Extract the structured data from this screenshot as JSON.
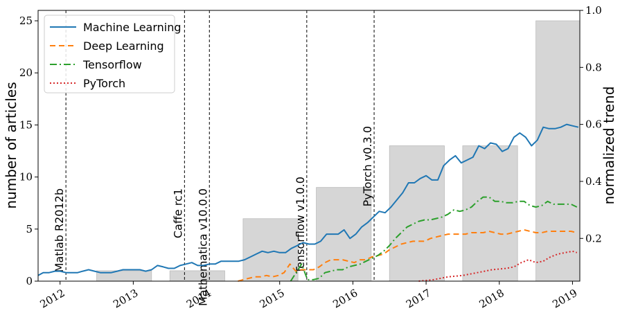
{
  "chart_data": {
    "type": "line",
    "title": "",
    "xlabel": "",
    "ylabel": "number of articles",
    "y2label": "normalized trend",
    "xlim": [
      2011.7,
      2019.1
    ],
    "ylim": [
      0,
      26
    ],
    "y2lim": [
      0.05,
      1.0
    ],
    "x_ticks": [
      {
        "value": 2012,
        "label": "2012"
      },
      {
        "value": 2013,
        "label": "2013"
      },
      {
        "value": 2014,
        "label": "2014"
      },
      {
        "value": 2015,
        "label": "2015"
      },
      {
        "value": 2016,
        "label": "2016"
      },
      {
        "value": 2017,
        "label": "2017"
      },
      {
        "value": 2018,
        "label": "2018"
      },
      {
        "value": 2019,
        "label": "2019"
      }
    ],
    "y_ticks": [
      {
        "value": 0,
        "label": "0"
      },
      {
        "value": 5,
        "label": "5"
      },
      {
        "value": 10,
        "label": "10"
      },
      {
        "value": 15,
        "label": "15"
      },
      {
        "value": 20,
        "label": "20"
      },
      {
        "value": 25,
        "label": "25"
      }
    ],
    "y2_ticks": [
      {
        "value": 0.2,
        "label": "0.2"
      },
      {
        "value": 0.4,
        "label": "0.4"
      },
      {
        "value": 0.6,
        "label": "0.6"
      },
      {
        "value": 0.8,
        "label": "0.8"
      },
      {
        "value": 1.0,
        "label": "1.0"
      }
    ],
    "bars": [
      {
        "year": 2012,
        "x0": 2012.5,
        "x1": 2013.25,
        "value": 1
      },
      {
        "year": 2013,
        "x0": 2013.5,
        "x1": 2014.25,
        "value": 1
      },
      {
        "year": 2014,
        "x0": 2014.5,
        "x1": 2015.25,
        "value": 6
      },
      {
        "year": 2015,
        "x0": 2015.5,
        "x1": 2016.25,
        "value": 9
      },
      {
        "year": 2016,
        "x0": 2016.5,
        "x1": 2017.25,
        "value": 13
      },
      {
        "year": 2017,
        "x0": 2017.5,
        "x1": 2018.25,
        "value": 13
      },
      {
        "year": 2018,
        "x0": 2018.5,
        "x1": 2019.25,
        "value": 25
      }
    ],
    "releases": [
      {
        "x": 2012.08,
        "label": "Matlab R2012b"
      },
      {
        "x": 2013.7,
        "label": "Caffe rc1"
      },
      {
        "x": 2014.04,
        "label": "Mathematica v10.0.0"
      },
      {
        "x": 2015.37,
        "label": "Tensorflow v1.0.0"
      },
      {
        "x": 2016.29,
        "label": "PyTorch v0.3.0"
      }
    ],
    "series": [
      {
        "name": "Machine Learning",
        "color": "#1f77b4",
        "dash": "",
        "points": [
          [
            2011.7,
            0.07
          ],
          [
            2011.77,
            0.08
          ],
          [
            2011.85,
            0.08
          ],
          [
            2011.93,
            0.085
          ],
          [
            2012.0,
            0.085
          ],
          [
            2012.08,
            0.08
          ],
          [
            2012.16,
            0.08
          ],
          [
            2012.24,
            0.08
          ],
          [
            2012.31,
            0.085
          ],
          [
            2012.39,
            0.09
          ],
          [
            2012.47,
            0.085
          ],
          [
            2012.55,
            0.08
          ],
          [
            2012.63,
            0.08
          ],
          [
            2012.7,
            0.08
          ],
          [
            2012.78,
            0.085
          ],
          [
            2012.86,
            0.09
          ],
          [
            2012.93,
            0.09
          ],
          [
            2013.01,
            0.09
          ],
          [
            2013.09,
            0.09
          ],
          [
            2013.17,
            0.085
          ],
          [
            2013.25,
            0.09
          ],
          [
            2013.33,
            0.105
          ],
          [
            2013.41,
            0.1
          ],
          [
            2013.48,
            0.095
          ],
          [
            2013.56,
            0.095
          ],
          [
            2013.64,
            0.105
          ],
          [
            2013.72,
            0.11
          ],
          [
            2013.8,
            0.115
          ],
          [
            2013.88,
            0.105
          ],
          [
            2013.96,
            0.105
          ],
          [
            2014.04,
            0.11
          ],
          [
            2014.12,
            0.11
          ],
          [
            2014.2,
            0.12
          ],
          [
            2014.28,
            0.12
          ],
          [
            2014.36,
            0.12
          ],
          [
            2014.44,
            0.12
          ],
          [
            2014.52,
            0.125
          ],
          [
            2014.6,
            0.135
          ],
          [
            2014.68,
            0.145
          ],
          [
            2014.76,
            0.155
          ],
          [
            2014.84,
            0.15
          ],
          [
            2014.92,
            0.155
          ],
          [
            2015.0,
            0.15
          ],
          [
            2015.08,
            0.15
          ],
          [
            2015.16,
            0.165
          ],
          [
            2015.24,
            0.175
          ],
          [
            2015.32,
            0.185
          ],
          [
            2015.4,
            0.18
          ],
          [
            2015.48,
            0.18
          ],
          [
            2015.56,
            0.19
          ],
          [
            2015.64,
            0.215
          ],
          [
            2015.72,
            0.215
          ],
          [
            2015.8,
            0.215
          ],
          [
            2015.88,
            0.23
          ],
          [
            2015.96,
            0.2
          ],
          [
            2016.04,
            0.215
          ],
          [
            2016.12,
            0.24
          ],
          [
            2016.2,
            0.255
          ],
          [
            2016.28,
            0.275
          ],
          [
            2016.36,
            0.295
          ],
          [
            2016.44,
            0.29
          ],
          [
            2016.52,
            0.31
          ],
          [
            2016.6,
            0.335
          ],
          [
            2016.68,
            0.36
          ],
          [
            2016.76,
            0.395
          ],
          [
            2016.84,
            0.395
          ],
          [
            2016.92,
            0.41
          ],
          [
            2017.0,
            0.42
          ],
          [
            2017.08,
            0.405
          ],
          [
            2017.16,
            0.405
          ],
          [
            2017.24,
            0.455
          ],
          [
            2017.32,
            0.475
          ],
          [
            2017.4,
            0.49
          ],
          [
            2017.48,
            0.465
          ],
          [
            2017.56,
            0.475
          ],
          [
            2017.64,
            0.485
          ],
          [
            2017.72,
            0.525
          ],
          [
            2017.8,
            0.515
          ],
          [
            2017.88,
            0.535
          ],
          [
            2017.96,
            0.53
          ],
          [
            2018.04,
            0.505
          ],
          [
            2018.12,
            0.515
          ],
          [
            2018.2,
            0.555
          ],
          [
            2018.28,
            0.57
          ],
          [
            2018.36,
            0.555
          ],
          [
            2018.44,
            0.525
          ],
          [
            2018.52,
            0.545
          ],
          [
            2018.6,
            0.59
          ],
          [
            2018.68,
            0.585
          ],
          [
            2018.76,
            0.585
          ],
          [
            2018.84,
            0.59
          ],
          [
            2018.92,
            0.6
          ],
          [
            2019.0,
            0.595
          ],
          [
            2019.08,
            0.59
          ]
        ]
      },
      {
        "name": "Deep Learning",
        "color": "#ff7f0e",
        "dash": "8,5",
        "points": [
          [
            2014.43,
            0.05
          ],
          [
            2014.5,
            0.055
          ],
          [
            2014.58,
            0.06
          ],
          [
            2014.66,
            0.065
          ],
          [
            2014.74,
            0.065
          ],
          [
            2014.82,
            0.07
          ],
          [
            2014.9,
            0.065
          ],
          [
            2014.98,
            0.07
          ],
          [
            2015.06,
            0.08
          ],
          [
            2015.14,
            0.11
          ],
          [
            2015.22,
            0.085
          ],
          [
            2015.3,
            0.09
          ],
          [
            2015.38,
            0.09
          ],
          [
            2015.46,
            0.09
          ],
          [
            2015.54,
            0.1
          ],
          [
            2015.62,
            0.115
          ],
          [
            2015.7,
            0.125
          ],
          [
            2015.78,
            0.125
          ],
          [
            2015.86,
            0.125
          ],
          [
            2015.94,
            0.12
          ],
          [
            2016.02,
            0.115
          ],
          [
            2016.1,
            0.125
          ],
          [
            2016.18,
            0.125
          ],
          [
            2016.26,
            0.135
          ],
          [
            2016.34,
            0.14
          ],
          [
            2016.42,
            0.145
          ],
          [
            2016.5,
            0.16
          ],
          [
            2016.58,
            0.17
          ],
          [
            2016.66,
            0.18
          ],
          [
            2016.74,
            0.185
          ],
          [
            2016.82,
            0.19
          ],
          [
            2016.9,
            0.19
          ],
          [
            2016.98,
            0.19
          ],
          [
            2017.06,
            0.2
          ],
          [
            2017.14,
            0.205
          ],
          [
            2017.22,
            0.21
          ],
          [
            2017.3,
            0.215
          ],
          [
            2017.38,
            0.215
          ],
          [
            2017.46,
            0.215
          ],
          [
            2017.54,
            0.215
          ],
          [
            2017.62,
            0.22
          ],
          [
            2017.7,
            0.22
          ],
          [
            2017.78,
            0.22
          ],
          [
            2017.86,
            0.225
          ],
          [
            2017.94,
            0.22
          ],
          [
            2018.02,
            0.215
          ],
          [
            2018.1,
            0.215
          ],
          [
            2018.18,
            0.22
          ],
          [
            2018.26,
            0.225
          ],
          [
            2018.34,
            0.23
          ],
          [
            2018.42,
            0.225
          ],
          [
            2018.5,
            0.22
          ],
          [
            2018.58,
            0.22
          ],
          [
            2018.66,
            0.225
          ],
          [
            2018.74,
            0.225
          ],
          [
            2018.82,
            0.225
          ],
          [
            2018.9,
            0.225
          ],
          [
            2018.98,
            0.225
          ],
          [
            2019.06,
            0.22
          ]
        ]
      },
      {
        "name": "Tensorflow",
        "color": "#2ca02c",
        "dash": "10,4,2,4",
        "points": [
          [
            2015.15,
            0.05
          ],
          [
            2015.3,
            0.11
          ],
          [
            2015.38,
            0.055
          ],
          [
            2015.46,
            0.055
          ],
          [
            2015.54,
            0.06
          ],
          [
            2015.62,
            0.08
          ],
          [
            2015.7,
            0.085
          ],
          [
            2015.78,
            0.09
          ],
          [
            2015.86,
            0.09
          ],
          [
            2015.94,
            0.1
          ],
          [
            2016.02,
            0.105
          ],
          [
            2016.1,
            0.11
          ],
          [
            2016.18,
            0.12
          ],
          [
            2016.26,
            0.13
          ],
          [
            2016.34,
            0.14
          ],
          [
            2016.42,
            0.155
          ],
          [
            2016.5,
            0.175
          ],
          [
            2016.58,
            0.2
          ],
          [
            2016.66,
            0.22
          ],
          [
            2016.74,
            0.24
          ],
          [
            2016.82,
            0.25
          ],
          [
            2016.9,
            0.26
          ],
          [
            2016.98,
            0.265
          ],
          [
            2017.06,
            0.265
          ],
          [
            2017.14,
            0.27
          ],
          [
            2017.22,
            0.275
          ],
          [
            2017.3,
            0.285
          ],
          [
            2017.38,
            0.3
          ],
          [
            2017.46,
            0.295
          ],
          [
            2017.54,
            0.3
          ],
          [
            2017.62,
            0.31
          ],
          [
            2017.7,
            0.33
          ],
          [
            2017.78,
            0.345
          ],
          [
            2017.86,
            0.345
          ],
          [
            2017.94,
            0.33
          ],
          [
            2018.02,
            0.33
          ],
          [
            2018.1,
            0.325
          ],
          [
            2018.18,
            0.325
          ],
          [
            2018.26,
            0.33
          ],
          [
            2018.34,
            0.33
          ],
          [
            2018.42,
            0.315
          ],
          [
            2018.5,
            0.31
          ],
          [
            2018.58,
            0.315
          ],
          [
            2018.66,
            0.33
          ],
          [
            2018.74,
            0.32
          ],
          [
            2018.82,
            0.32
          ],
          [
            2018.9,
            0.32
          ],
          [
            2018.98,
            0.32
          ],
          [
            2019.06,
            0.31
          ]
        ]
      },
      {
        "name": "PyTorch",
        "color": "#d62728",
        "dash": "2,3",
        "points": [
          [
            2016.9,
            0.05
          ],
          [
            2017.1,
            0.055
          ],
          [
            2017.3,
            0.065
          ],
          [
            2017.5,
            0.07
          ],
          [
            2017.7,
            0.08
          ],
          [
            2017.9,
            0.09
          ],
          [
            2018.1,
            0.095
          ],
          [
            2018.2,
            0.1
          ],
          [
            2018.3,
            0.115
          ],
          [
            2018.4,
            0.125
          ],
          [
            2018.5,
            0.115
          ],
          [
            2018.6,
            0.12
          ],
          [
            2018.7,
            0.135
          ],
          [
            2018.8,
            0.145
          ],
          [
            2018.9,
            0.15
          ],
          [
            2019.0,
            0.155
          ],
          [
            2019.06,
            0.15
          ]
        ]
      }
    ],
    "legend_position": "top-left",
    "grid": false
  }
}
